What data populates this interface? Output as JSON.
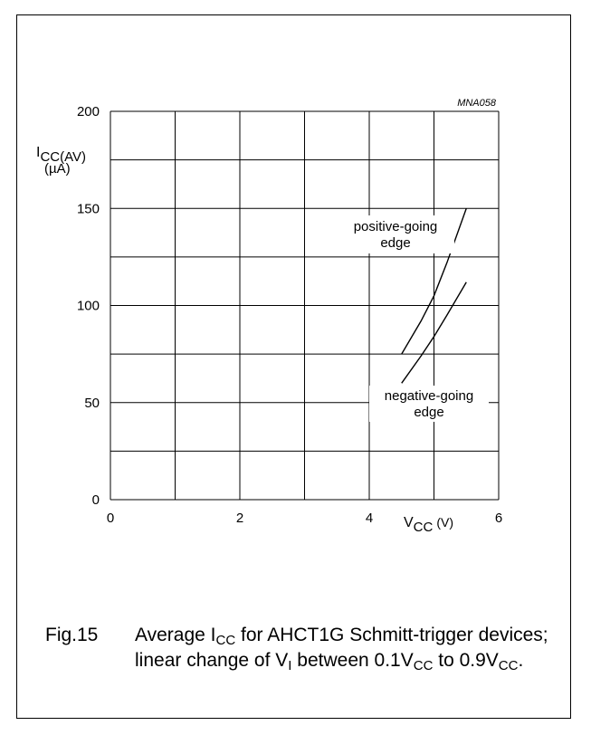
{
  "figure_id": "MNA058",
  "chart_data": {
    "type": "line",
    "xlabel": {
      "main": "V",
      "sub": "CC",
      "unit": "(V)"
    },
    "ylabel": {
      "main": "I",
      "sub": "CC(AV)",
      "unit": "(µA)"
    },
    "xlim": [
      0,
      6
    ],
    "ylim": [
      0,
      200
    ],
    "xticks": [
      0,
      2,
      4,
      6
    ],
    "xtick_labels": [
      "0",
      "2",
      "4",
      "6"
    ],
    "yticks": [
      0,
      50,
      100,
      150,
      200
    ],
    "ytick_labels": [
      "0",
      "50",
      "100",
      "150",
      "200"
    ],
    "grid": {
      "x_step": 1,
      "y_step": 25
    },
    "series": [
      {
        "name": "positive-going edge",
        "x": [
          4.5,
          4.8,
          5.0,
          5.2,
          5.5
        ],
        "y": [
          75,
          92,
          105,
          122,
          150
        ]
      },
      {
        "name": "negative-going edge",
        "x": [
          4.5,
          4.8,
          5.0,
          5.2,
          5.5
        ],
        "y": [
          60,
          74,
          84,
          95,
          112
        ]
      }
    ],
    "annotations": [
      {
        "lines": [
          "positive-going",
          "edge"
        ],
        "series": 0
      },
      {
        "lines": [
          "negative-going",
          "edge"
        ],
        "series": 1
      }
    ]
  },
  "caption": {
    "number": "Fig.15",
    "parts": [
      {
        "t": "Average I"
      },
      {
        "sub": "CC"
      },
      {
        "t": " for AHCT1G Schmitt-trigger devices; linear change of V"
      },
      {
        "sub": "I"
      },
      {
        "t": " between 0.1V"
      },
      {
        "sub": "CC"
      },
      {
        "t": " to 0.9V"
      },
      {
        "sub": "CC"
      },
      {
        "t": "."
      }
    ]
  }
}
